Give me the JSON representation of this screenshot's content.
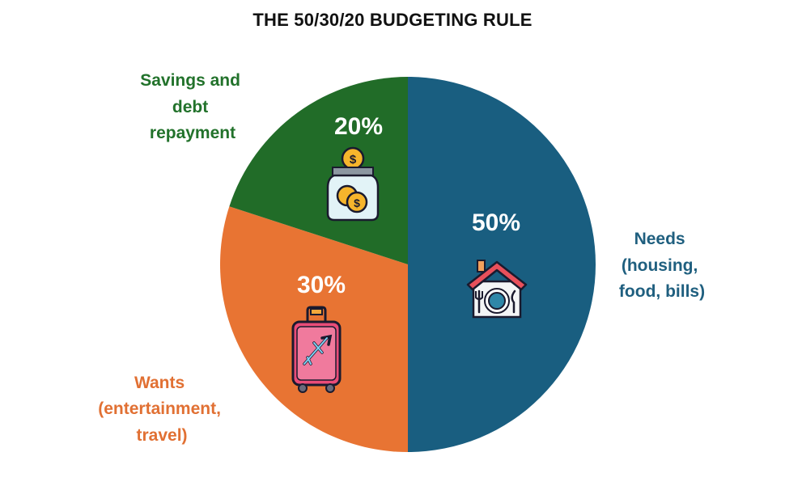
{
  "chart_data": {
    "type": "pie",
    "title": "THE 50/30/20 BUDGETING RULE",
    "slices": [
      {
        "key": "needs",
        "value": 50,
        "pct_label": "50%",
        "label_lines": [
          "Needs",
          "(housing,",
          "food, bills)"
        ],
        "color": "#195e80",
        "label_color": "#1f5f7f",
        "icon": "house-dining-icon"
      },
      {
        "key": "wants",
        "value": 30,
        "pct_label": "30%",
        "label_lines": [
          "Wants",
          "(entertainment,",
          "travel)"
        ],
        "color": "#e87433",
        "label_color": "#e17033",
        "icon": "luggage-airplane-icon"
      },
      {
        "key": "savings",
        "value": 20,
        "pct_label": "20%",
        "label_lines": [
          "Savings and",
          "debt",
          "repayment"
        ],
        "color": "#216c28",
        "label_color": "#22722b",
        "icon": "coin-jar-icon"
      }
    ]
  }
}
